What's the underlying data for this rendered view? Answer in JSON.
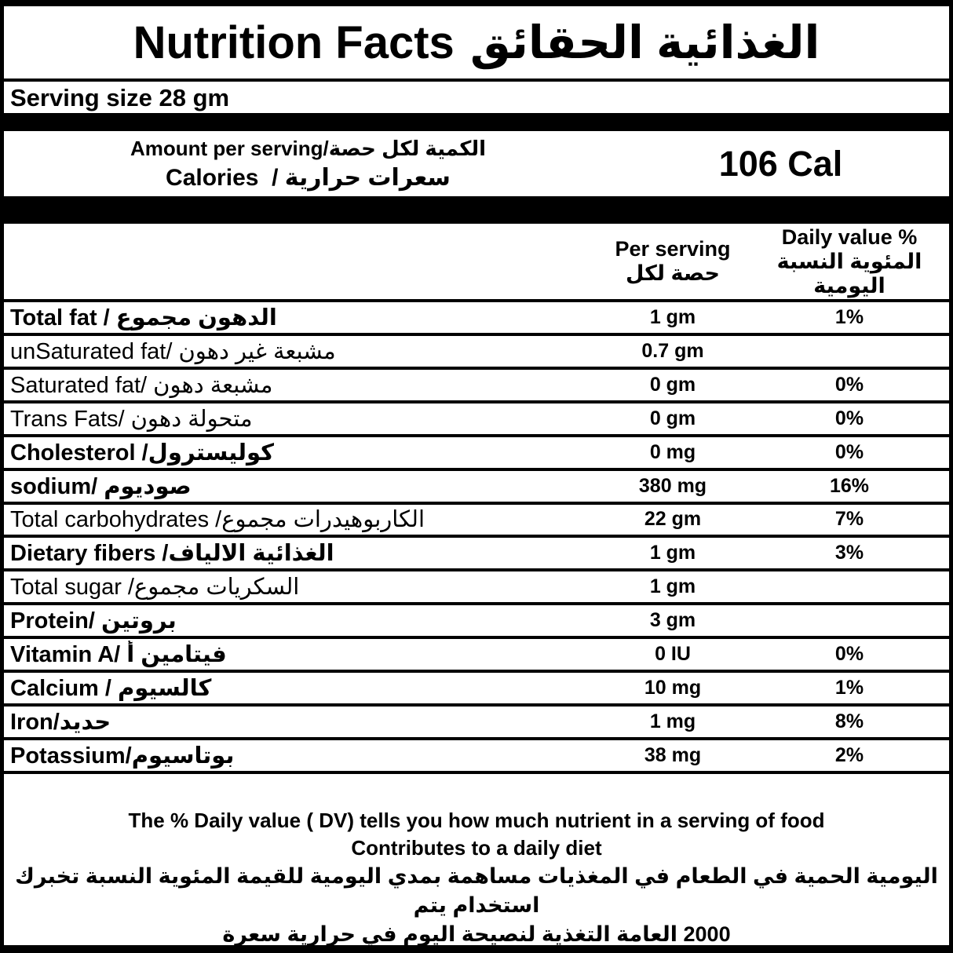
{
  "colors": {
    "ink": "#000000",
    "paper": "#ffffff"
  },
  "title": {
    "en": "Nutrition Facts",
    "ar": "الحقائق‎ الغذائية"
  },
  "serving": {
    "label": "Serving size 28 gm"
  },
  "calories_section": {
    "amount_line": "Amount per serving/الكمية لكل حصة",
    "calories_line": "Calories  / سعرات حرارية",
    "calories_value": "106 Cal"
  },
  "table": {
    "headers": {
      "per_serving": [
        "Per serving",
        "لكل‎ حصة"
      ],
      "daily_value": [
        "Daily value %",
        "النسبة‎ المئوية",
        "اليومية"
      ]
    },
    "rows": [
      {
        "key": "total-fat",
        "label": "Total fat / مجموع‎ الدهون",
        "amount": "1 gm",
        "dv": "1%",
        "bold": true
      },
      {
        "key": "unsaturated-fat",
        "label": "unSaturated fat/ دهون‎ غير‎ مشبعة",
        "amount": "0.7 gm",
        "dv": "",
        "bold": false
      },
      {
        "key": "saturated-fat",
        "label": "Saturated fat/ دهون‎ مشبعة",
        "amount": "0 gm",
        "dv": "0%",
        "bold": false
      },
      {
        "key": "trans-fats",
        "label": "Trans Fats/ دهون‎ متحولة",
        "amount": "0 gm",
        "dv": "0%",
        "bold": false
      },
      {
        "key": "cholesterol",
        "label": "Cholesterol /كوليسترول",
        "amount": "0 mg",
        "dv": "0%",
        "bold": true
      },
      {
        "key": "sodium",
        "label": "sodium/ صوديوم",
        "amount": "380 mg",
        "dv": "16%",
        "bold": true
      },
      {
        "key": "total-carbohydrates",
        "label": "Total carbohydrates /مجموع‎ الكاربوهيدرات",
        "amount": "22 gm",
        "dv": "7%",
        "bold": false
      },
      {
        "key": "dietary-fibers",
        "label": "Dietary fibers /الالياف‎ الغذائية",
        "amount": "1 gm",
        "dv": "3%",
        "bold": true
      },
      {
        "key": "total-sugar",
        "label": "Total sugar /مجموع‎ السكريات",
        "amount": "1 gm",
        "dv": "",
        "bold": false
      },
      {
        "key": "protein",
        "label": "Protein/ بروتين",
        "amount": "3 gm",
        "dv": "",
        "bold": true
      },
      {
        "key": "vitamin-a",
        "label": "Vitamin A/ فيتامين أ",
        "amount": "0 IU",
        "dv": "0%",
        "bold": true
      },
      {
        "key": "calcium",
        "label": "Calcium / كالسيوم",
        "amount": "10 mg",
        "dv": "1%",
        "bold": true
      },
      {
        "key": "iron",
        "label": "Iron/حديد",
        "amount": "1 mg",
        "dv": "8%",
        "bold": true
      },
      {
        "key": "potassium",
        "label": "Potassium/بوتاسيوم",
        "amount": "38 mg",
        "dv": "2%",
        "bold": true
      }
    ]
  },
  "footnote": {
    "lines": [
      "The % Daily value ( DV) tells you how much nutrient in a serving of food",
      "Contributes to a daily diet",
      "تخبرك‎ النسبة‎ المئوية‎ للقيمة‎ اليومية‎ بمدي‎ مساهمة‎ المغذيات‎ في‎ الطعام‎ في‎ الحمية‎ اليومية‎  يتم‎ استخدام",
      "سعرة‎ حرارية‎ في‎ اليوم‎ لنصيحة‎ التغذية‎ العامة‎ 2000"
    ]
  }
}
